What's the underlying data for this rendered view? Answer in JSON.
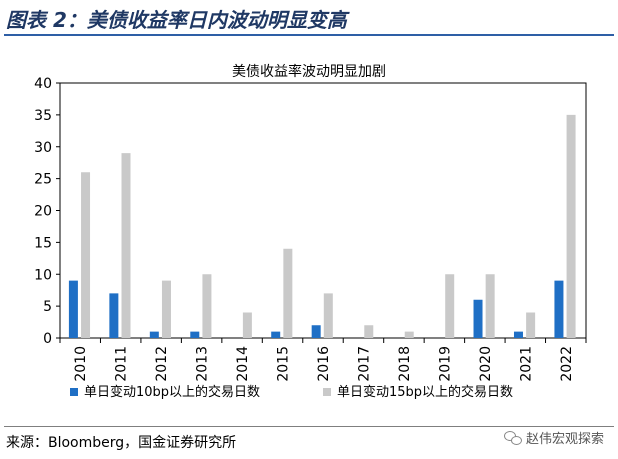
{
  "header": {
    "title": "图表 2：美债收益率日内波动明显变高"
  },
  "footer": {
    "source": "来源：Bloomberg，国金证券研究所",
    "watermark": "赵伟宏观探索"
  },
  "colors": {
    "series_10bp": "#1f6fc5",
    "series_15bp": "#c9c9c9",
    "title_blue": "#1f3864",
    "rule_blue": "#2e5fa6"
  },
  "chart_data": {
    "type": "bar",
    "title": "美债收益率波动明显加剧",
    "xlabel": "",
    "ylabel": "",
    "ylim": [
      0,
      40
    ],
    "yticks": [
      0,
      5,
      10,
      15,
      20,
      25,
      30,
      35,
      40
    ],
    "grid": false,
    "legend_position": "bottom",
    "categories": [
      "2010",
      "2011",
      "2012",
      "2013",
      "2014",
      "2015",
      "2016",
      "2017",
      "2018",
      "2019",
      "2020",
      "2021",
      "2022"
    ],
    "series": [
      {
        "name": "单日变动10bp以上的交易日数",
        "values": [
          9,
          7,
          1,
          1,
          0,
          1,
          2,
          0,
          0,
          0,
          6,
          1,
          9
        ]
      },
      {
        "name": "单日变动15bp以上的交易日数",
        "values": [
          26,
          29,
          9,
          10,
          4,
          14,
          7,
          2,
          1,
          10,
          10,
          4,
          35
        ]
      }
    ]
  }
}
